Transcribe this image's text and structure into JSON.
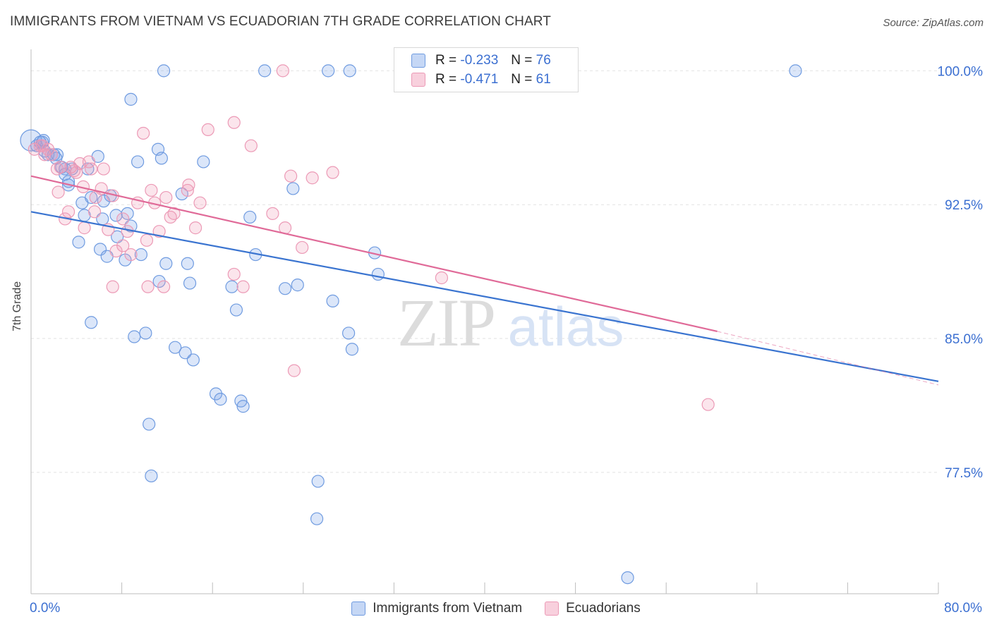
{
  "header": {
    "title": "IMMIGRANTS FROM VIETNAM VS ECUADORIAN 7TH GRADE CORRELATION CHART",
    "source": "Source: ZipAtlas.com"
  },
  "watermark": {
    "zip": "ZIP",
    "atlas": "atlas"
  },
  "legend_top": {
    "rows": [
      {
        "r_label": "R = ",
        "r_value": "-0.233",
        "n_label": "N = ",
        "n_value": "76",
        "color": "#7ea7e8"
      },
      {
        "r_label": "R = ",
        "r_value": "-0.471",
        "n_label": "N = ",
        "n_value": "61",
        "color": "#f0a0bb"
      }
    ]
  },
  "legend_bottom": {
    "items": [
      {
        "label": "Immigrants from Vietnam",
        "color": "#7ea7e8"
      },
      {
        "label": "Ecuadorians",
        "color": "#f0a0bb"
      }
    ]
  },
  "colors": {
    "blue_fill": "rgba(126,167,232,0.28)",
    "blue_stroke": "#6f9be0",
    "blue_line": "#3a74d0",
    "pink_fill": "rgba(240,150,180,0.25)",
    "pink_stroke": "#ec9ab6",
    "pink_line": "#e06a98",
    "tick_text": "#3b6fd1",
    "grid": "#e2e2e2"
  },
  "chart_data": {
    "type": "scatter",
    "title": "IMMIGRANTS FROM VIETNAM VS ECUADORIAN 7TH GRADE CORRELATION CHART",
    "xlabel": "",
    "ylabel": "7th Grade",
    "xlim": [
      0,
      80
    ],
    "ylim": [
      70.7,
      101.2
    ],
    "x_tick_labels": [
      "0.0%",
      "80.0%"
    ],
    "y_ticks": [
      77.5,
      85.0,
      92.5,
      100.0
    ],
    "y_tick_labels": [
      "77.5%",
      "85.0%",
      "92.5%",
      "100.0%"
    ],
    "grid": true,
    "series": [
      {
        "name": "Immigrants from Vietnam",
        "r": -0.233,
        "n": 76,
        "trend": {
          "x": [
            0,
            80
          ],
          "y": [
            92.1,
            82.6
          ]
        },
        "points": [
          [
            0,
            96.1
          ],
          [
            0.5,
            95.8
          ],
          [
            1,
            96.0
          ],
          [
            1.2,
            95.5
          ],
          [
            1.5,
            95.3
          ],
          [
            2,
            95.3
          ],
          [
            2.3,
            95.3
          ],
          [
            3,
            94.5
          ],
          [
            3,
            94.2
          ],
          [
            3.3,
            93.6
          ],
          [
            3.3,
            93.8
          ],
          [
            5,
            94.5
          ],
          [
            4.5,
            92.6
          ],
          [
            5.3,
            92.9
          ],
          [
            4.7,
            91.9
          ],
          [
            6.4,
            92.7
          ],
          [
            7,
            93.0
          ],
          [
            6.3,
            91.7
          ],
          [
            7.5,
            91.9
          ],
          [
            8.5,
            92.0
          ],
          [
            8.8,
            91.3
          ],
          [
            4.2,
            90.4
          ],
          [
            6.1,
            90.0
          ],
          [
            6.7,
            89.6
          ],
          [
            7.6,
            90.7
          ],
          [
            8.3,
            89.4
          ],
          [
            9.7,
            89.7
          ],
          [
            8.8,
            98.4
          ],
          [
            9.4,
            94.9
          ],
          [
            11.2,
            95.6
          ],
          [
            11.5,
            95.1
          ],
          [
            11.7,
            100.0
          ],
          [
            13.3,
            93.1
          ],
          [
            15.2,
            94.9
          ],
          [
            11.9,
            89.2
          ],
          [
            11.3,
            88.2
          ],
          [
            13.8,
            89.2
          ],
          [
            14,
            88.1
          ],
          [
            13.6,
            84.2
          ],
          [
            12.7,
            84.5
          ],
          [
            14.3,
            83.8
          ],
          [
            10.1,
            85.3
          ],
          [
            9.1,
            85.1
          ],
          [
            5.3,
            85.9
          ],
          [
            10.4,
            80.2
          ],
          [
            10.6,
            77.3
          ],
          [
            16.3,
            81.9
          ],
          [
            16.7,
            81.6
          ],
          [
            18.5,
            81.5
          ],
          [
            18.7,
            81.2
          ],
          [
            17.7,
            87.9
          ],
          [
            18.1,
            86.6
          ],
          [
            19.3,
            91.8
          ],
          [
            19.8,
            89.7
          ],
          [
            20.6,
            100.0
          ],
          [
            23.1,
            93.4
          ],
          [
            23.5,
            88.0
          ],
          [
            22.4,
            87.8
          ],
          [
            26.2,
            100.0
          ],
          [
            28.1,
            100.0
          ],
          [
            26.6,
            87.1
          ],
          [
            28,
            85.3
          ],
          [
            28.3,
            84.4
          ],
          [
            30.3,
            89.8
          ],
          [
            30.6,
            88.6
          ],
          [
            25.3,
            77.0
          ],
          [
            25.2,
            74.9
          ],
          [
            43,
            100.0
          ],
          [
            67.4,
            100.0
          ],
          [
            52.6,
            71.6
          ],
          [
            3.6,
            94.5
          ],
          [
            1.1,
            96.1
          ],
          [
            0.8,
            96.0
          ],
          [
            2.2,
            95.1
          ],
          [
            5.9,
            95.2
          ],
          [
            2.7,
            94.6
          ]
        ]
      },
      {
        "name": "Ecuadorians",
        "r": -0.471,
        "n": 61,
        "trend": {
          "x": [
            0,
            60.5
          ],
          "y": [
            94.1,
            85.4
          ]
        },
        "trend_extension": {
          "x": [
            60.5,
            80
          ],
          "y": [
            85.4,
            82.4
          ]
        },
        "points": [
          [
            0.3,
            95.6
          ],
          [
            0.8,
            95.8
          ],
          [
            1.2,
            95.3
          ],
          [
            1.5,
            95.6
          ],
          [
            1.8,
            95.3
          ],
          [
            2.3,
            94.5
          ],
          [
            2.6,
            94.6
          ],
          [
            3.5,
            94.6
          ],
          [
            3.8,
            94.4
          ],
          [
            4.3,
            94.8
          ],
          [
            5.3,
            94.5
          ],
          [
            5.1,
            94.9
          ],
          [
            6.4,
            94.5
          ],
          [
            2.4,
            93.2
          ],
          [
            4.6,
            93.5
          ],
          [
            6.2,
            93.4
          ],
          [
            7.2,
            93.0
          ],
          [
            5.7,
            92.9
          ],
          [
            3.3,
            92.1
          ],
          [
            5.6,
            92.1
          ],
          [
            3,
            91.7
          ],
          [
            4.7,
            91.2
          ],
          [
            6.8,
            91.1
          ],
          [
            8.1,
            91.7
          ],
          [
            9.4,
            92.6
          ],
          [
            8.5,
            91.0
          ],
          [
            8.1,
            90.2
          ],
          [
            10.2,
            90.5
          ],
          [
            7.5,
            89.9
          ],
          [
            8.8,
            89.7
          ],
          [
            7.2,
            87.9
          ],
          [
            10.3,
            87.9
          ],
          [
            11.7,
            87.9
          ],
          [
            9.9,
            96.5
          ],
          [
            10.6,
            93.3
          ],
          [
            10.9,
            92.6
          ],
          [
            11.9,
            92.9
          ],
          [
            12.6,
            92.0
          ],
          [
            12.3,
            91.8
          ],
          [
            11.3,
            91.0
          ],
          [
            13.8,
            93.3
          ],
          [
            13.9,
            93.6
          ],
          [
            14.9,
            92.6
          ],
          [
            14.5,
            91.2
          ],
          [
            15.6,
            96.7
          ],
          [
            17.9,
            97.1
          ],
          [
            19.4,
            95.8
          ],
          [
            17.9,
            88.6
          ],
          [
            18.7,
            87.9
          ],
          [
            21.3,
            92.0
          ],
          [
            22.4,
            91.2
          ],
          [
            22.9,
            94.1
          ],
          [
            23.9,
            90.1
          ],
          [
            24.8,
            94.0
          ],
          [
            26.6,
            94.3
          ],
          [
            22.2,
            100.0
          ],
          [
            23.2,
            83.2
          ],
          [
            36.2,
            88.4
          ],
          [
            59.7,
            81.3
          ],
          [
            1,
            95.8
          ],
          [
            4,
            94.3
          ]
        ]
      }
    ]
  }
}
